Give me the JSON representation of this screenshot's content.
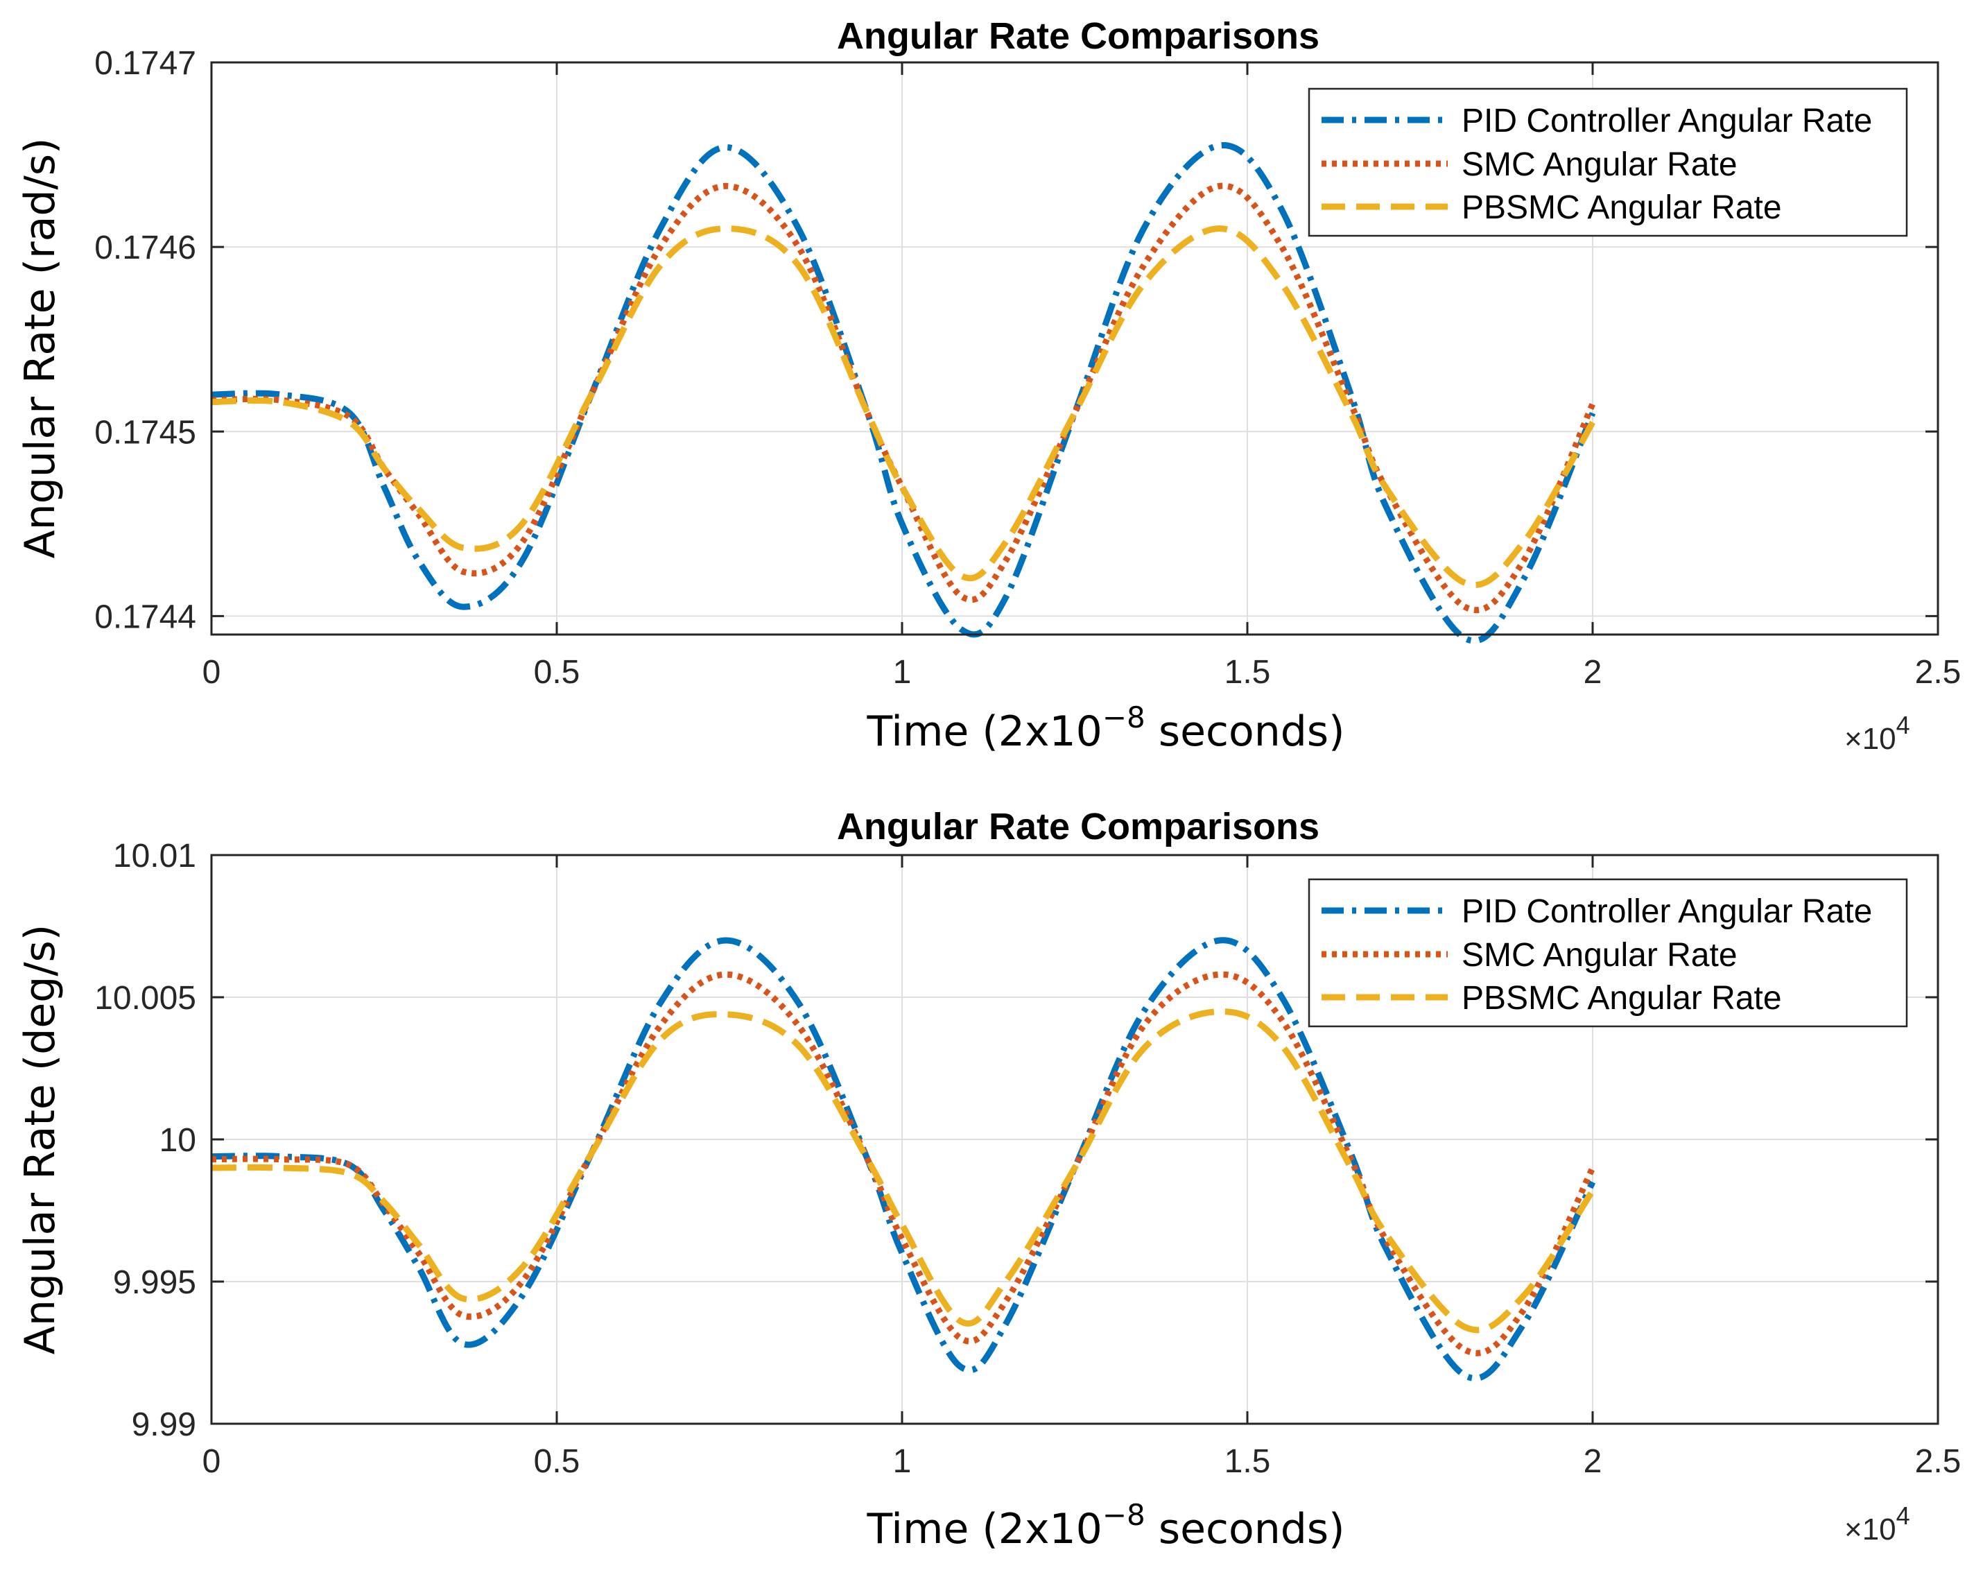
{
  "chart_data": [
    {
      "type": "line",
      "title": "Angular Rate Comparisons",
      "xlabel": "Time (2x10",
      "xlabel_sup": "−8",
      "xlabel_suffix": " seconds)",
      "ylabel": "Angular Rate (rad/s)",
      "x_exponent": {
        "base": "×10",
        "power": "4"
      },
      "xlim": [
        0,
        25000
      ],
      "ylim": [
        0.17439,
        0.1747
      ],
      "xticks": [
        0,
        5000,
        10000,
        15000,
        20000,
        25000
      ],
      "xtick_labels": [
        "0",
        "0.5",
        "1",
        "1.5",
        "2",
        "2.5"
      ],
      "yticks": [
        0.1744,
        0.1745,
        0.1746,
        0.1747
      ],
      "ytick_labels": [
        "0.1744",
        "0.1745",
        "0.1746",
        "0.1747"
      ],
      "grid": true,
      "legend_position": "top-right",
      "x": [
        0,
        1000,
        2000,
        2500,
        3000,
        3650,
        4500,
        5500,
        6500,
        7450,
        8500,
        9500,
        10000,
        10850,
        11500,
        12500,
        13500,
        14600,
        15500,
        16500,
        17000,
        18150,
        19000,
        20000
      ],
      "series": [
        {
          "name": "PID Controller Angular Rate",
          "color": "#0072BD",
          "style": "dashdot",
          "values": [
            0.17452,
            0.17452,
            0.17451,
            0.17447,
            0.17443,
            0.174405,
            0.17443,
            0.17452,
            0.17461,
            0.174654,
            0.17461,
            0.17451,
            0.17445,
            0.174393,
            0.17441,
            0.17451,
            0.17461,
            0.174655,
            0.17462,
            0.17452,
            0.17446,
            0.174388,
            0.17442,
            0.17451
          ]
        },
        {
          "name": "SMC Angular Rate",
          "color": "#D95319",
          "style": "dotted",
          "values": [
            0.174517,
            0.174517,
            0.174508,
            0.17448,
            0.174455,
            0.174424,
            0.17444,
            0.17452,
            0.1746,
            0.174633,
            0.1746,
            0.17451,
            0.17447,
            0.174411,
            0.17443,
            0.17451,
            0.17459,
            0.174633,
            0.1746,
            0.174515,
            0.17447,
            0.174405,
            0.17443,
            0.174515
          ]
        },
        {
          "name": "PBSMC Angular Rate",
          "color": "#EDB120",
          "style": "dashed",
          "values": [
            0.174516,
            0.174516,
            0.174505,
            0.17448,
            0.174458,
            0.174437,
            0.17445,
            0.17452,
            0.17459,
            0.17461,
            0.17459,
            0.17451,
            0.17447,
            0.174422,
            0.17444,
            0.17451,
            0.17458,
            0.17461,
            0.17458,
            0.17451,
            0.17447,
            0.174418,
            0.17444,
            0.174505
          ]
        }
      ]
    },
    {
      "type": "line",
      "title": "Angular Rate Comparisons",
      "xlabel": "Time (2x10",
      "xlabel_sup": "−8",
      "xlabel_suffix": " seconds)",
      "ylabel": "Angular Rate (deg/s)",
      "x_exponent": {
        "base": "×10",
        "power": "4"
      },
      "xlim": [
        0,
        25000
      ],
      "ylim": [
        9.99,
        10.01
      ],
      "xticks": [
        0,
        5000,
        10000,
        15000,
        20000,
        25000
      ],
      "xtick_labels": [
        "0",
        "0.5",
        "1",
        "1.5",
        "2",
        "2.5"
      ],
      "yticks": [
        9.99,
        9.995,
        10,
        10.005,
        10.01
      ],
      "ytick_labels": [
        "9.99",
        "9.995",
        "10",
        "10.005",
        "10.01"
      ],
      "grid": true,
      "legend_position": "top-right",
      "x": [
        0,
        1000,
        2000,
        2500,
        3000,
        3650,
        4500,
        5500,
        6500,
        7450,
        8500,
        9500,
        10000,
        10850,
        11500,
        12500,
        13500,
        14600,
        15500,
        16500,
        17000,
        18150,
        19000,
        20000
      ],
      "series": [
        {
          "name": "PID Controller Angular Rate",
          "color": "#0072BD",
          "style": "dashdot",
          "values": [
            9.9994,
            9.9994,
            9.9991,
            9.9975,
            9.9955,
            9.9928,
            9.9945,
            9.9995,
            10.0048,
            10.007,
            10.0048,
            9.9993,
            9.996,
            9.992,
            9.9935,
            9.999,
            10.0045,
            10.007,
            10.005,
            9.9995,
            9.9962,
            9.9917,
            9.9935,
            9.9985
          ]
        },
        {
          "name": "SMC Angular Rate",
          "color": "#D95319",
          "style": "dotted",
          "values": [
            9.9993,
            9.9993,
            9.9991,
            9.9977,
            9.996,
            9.9938,
            9.995,
            9.9995,
            10.004,
            10.0058,
            10.004,
            9.9993,
            9.9965,
            9.993,
            9.9943,
            9.999,
            10.004,
            10.0058,
            10.0042,
            9.9993,
            9.9965,
            9.9926,
            9.994,
            9.999
          ]
        },
        {
          "name": "PBSMC Angular Rate",
          "color": "#EDB120",
          "style": "dashed",
          "values": [
            9.999,
            9.999,
            9.9988,
            9.9978,
            9.9963,
            9.9944,
            9.9955,
            9.9995,
            10.0035,
            10.0044,
            10.0033,
            9.9993,
            9.997,
            9.9936,
            9.995,
            9.999,
            10.0032,
            10.0045,
            10.0033,
            9.999,
            9.9967,
            9.9934,
            9.9945,
            9.9982
          ]
        }
      ]
    }
  ]
}
